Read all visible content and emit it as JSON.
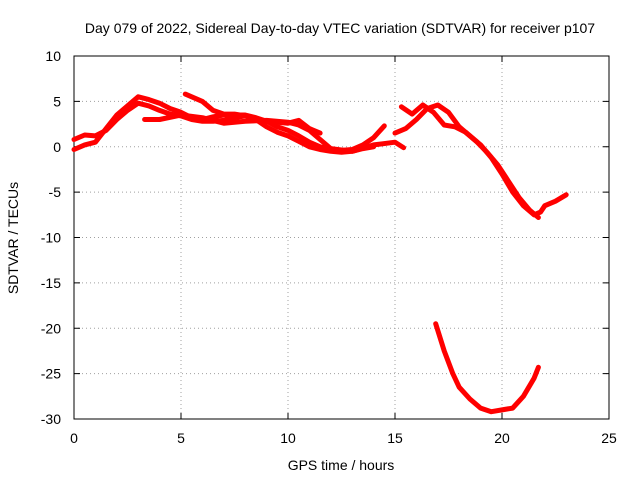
{
  "chart_data": {
    "type": "line",
    "title": "Day 079 of 2022, Sidereal Day-to-day VTEC variation (SDTVAR) for receiver p107",
    "xlabel": "GPS time / hours",
    "ylabel": "SDTVAR / TECUs",
    "xlim": [
      0,
      25
    ],
    "ylim": [
      -30,
      10
    ],
    "xticks": [
      0,
      5,
      10,
      15,
      20,
      25
    ],
    "yticks": [
      10,
      5,
      0,
      -5,
      -10,
      -15,
      -20,
      -25,
      -30
    ],
    "grid": true,
    "color": "#ff0000",
    "series": [
      {
        "name": "track-1",
        "x": [
          0.0,
          0.5,
          1.0,
          1.5,
          2.0,
          2.5,
          3.0,
          3.5,
          4.0,
          4.5,
          5.0,
          5.5,
          6.0,
          6.5,
          7.0,
          7.5,
          8.0,
          8.5,
          9.0,
          9.5,
          10.0,
          10.5,
          11.0,
          11.5,
          12.0,
          12.5,
          13.0,
          13.5,
          14.0,
          14.5
        ],
        "y": [
          -0.3,
          0.2,
          0.5,
          2.0,
          3.5,
          4.5,
          5.5,
          5.2,
          4.8,
          4.2,
          3.8,
          3.2,
          3.0,
          3.3,
          3.5,
          3.5,
          3.5,
          3.2,
          2.8,
          2.2,
          1.8,
          1.2,
          0.5,
          0.0,
          -0.3,
          -0.4,
          -0.3,
          0.2,
          1.0,
          2.3
        ]
      },
      {
        "name": "track-2",
        "x": [
          0.0,
          0.5,
          1.0,
          1.5,
          2.0,
          2.5,
          3.0,
          3.5,
          4.0,
          4.5,
          5.0,
          5.5,
          6.0,
          6.5,
          7.0,
          7.5,
          8.0,
          8.5,
          9.0,
          9.5,
          10.0,
          10.5,
          11.0,
          11.5,
          12.0,
          12.5,
          13.0,
          13.5,
          14.0
        ],
        "y": [
          0.8,
          1.3,
          1.2,
          1.8,
          3.0,
          4.0,
          4.8,
          4.5,
          4.0,
          3.6,
          3.4,
          3.0,
          2.8,
          2.8,
          2.9,
          3.2,
          3.4,
          3.0,
          2.2,
          1.6,
          1.2,
          0.6,
          0.0,
          -0.3,
          -0.5,
          -0.6,
          -0.5,
          -0.2,
          0.0
        ]
      },
      {
        "name": "track-3",
        "x": [
          3.3,
          4.0,
          5.0,
          6.0,
          7.0,
          8.0,
          9.0,
          10.0,
          10.5,
          11.0,
          11.5,
          12.0,
          13.0,
          14.0,
          15.0,
          15.4
        ],
        "y": [
          3.0,
          3.0,
          3.5,
          3.2,
          2.6,
          2.8,
          2.9,
          2.7,
          2.4,
          1.8,
          0.8,
          -0.2,
          -0.5,
          0.2,
          0.5,
          -0.1
        ]
      },
      {
        "name": "track-4",
        "x": [
          5.2,
          6.0,
          6.5,
          7.0,
          7.5,
          8.0,
          9.0,
          10.0,
          10.5,
          11.0,
          11.5
        ],
        "y": [
          5.8,
          5.0,
          4.0,
          3.6,
          3.6,
          3.4,
          2.8,
          2.6,
          2.9,
          2.0,
          1.5
        ]
      },
      {
        "name": "track-5",
        "x": [
          15.0,
          15.5,
          16.0,
          16.5,
          17.0,
          17.5,
          18.0,
          18.5,
          19.0,
          19.5,
          20.0,
          20.5,
          21.0,
          21.5,
          21.8,
          22.0,
          22.5,
          23.0
        ],
        "y": [
          1.5,
          2.0,
          3.0,
          4.2,
          4.6,
          3.8,
          2.2,
          1.2,
          0.2,
          -1.2,
          -3.0,
          -5.0,
          -6.5,
          -7.5,
          -7.2,
          -6.5,
          -6.0,
          -5.3
        ]
      },
      {
        "name": "track-6",
        "x": [
          15.3,
          15.8,
          16.3,
          16.8,
          17.3,
          17.8,
          18.3,
          18.8,
          19.3,
          19.8,
          20.3,
          20.8,
          21.3,
          21.7
        ],
        "y": [
          4.4,
          3.6,
          4.6,
          3.8,
          2.4,
          2.2,
          1.6,
          0.6,
          -0.6,
          -2.0,
          -3.8,
          -5.6,
          -7.0,
          -7.8
        ]
      },
      {
        "name": "track-7",
        "x": [
          16.9,
          17.3,
          17.7,
          18.0,
          18.5,
          19.0,
          19.5,
          20.0,
          20.5,
          21.0,
          21.5,
          21.7
        ],
        "y": [
          -19.5,
          -22.5,
          -25.0,
          -26.5,
          -27.8,
          -28.8,
          -29.2,
          -29.0,
          -28.8,
          -27.5,
          -25.5,
          -24.3
        ]
      }
    ]
  }
}
